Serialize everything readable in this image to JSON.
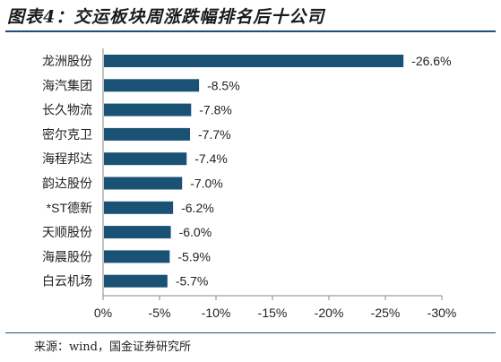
{
  "header": {
    "title": "图表4：交运板块周涨跌幅排名后十公司"
  },
  "footer": {
    "source": "来源：wind，国金证券研究所"
  },
  "colors": {
    "bar": "#1a5276",
    "rule": "#1f4e79",
    "axis": "#888888",
    "text": "#222222"
  },
  "chart_data": {
    "type": "bar",
    "orientation": "horizontal",
    "categories": [
      "龙洲股份",
      "海汽集团",
      "长久物流",
      "密尔克卫",
      "海程邦达",
      "韵达股份",
      "*ST德新",
      "天顺股份",
      "海晨股份",
      "白云机场"
    ],
    "values": [
      -26.6,
      -8.5,
      -7.8,
      -7.7,
      -7.4,
      -7.0,
      -6.2,
      -6.0,
      -5.9,
      -5.7
    ],
    "value_labels": [
      "-26.6%",
      "-8.5%",
      "-7.8%",
      "-7.7%",
      "-7.4%",
      "-7.0%",
      "-6.2%",
      "-6.0%",
      "-5.9%",
      "-5.7%"
    ],
    "xticks": [
      0,
      -5,
      -10,
      -15,
      -20,
      -25,
      -30
    ],
    "xtick_labels": [
      "0%",
      "-5%",
      "-10%",
      "-15%",
      "-20%",
      "-25%",
      "-30%"
    ],
    "xlim": [
      0,
      -30
    ],
    "grid": false,
    "legend": "none"
  }
}
